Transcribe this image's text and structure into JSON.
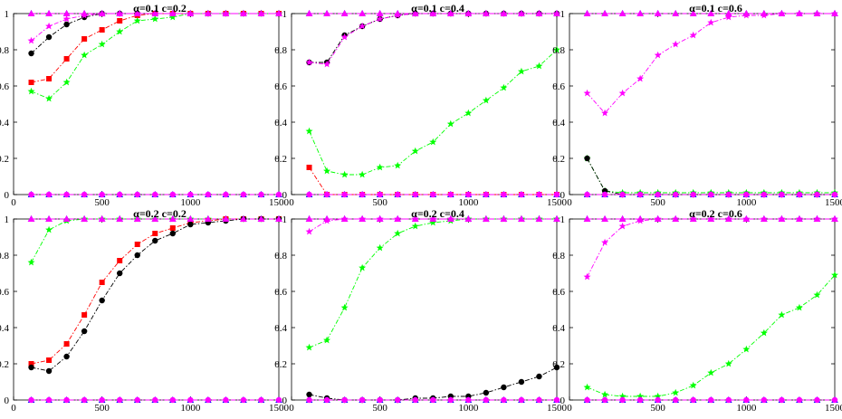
{
  "chart_data": {
    "type": "line",
    "colors": {
      "black": "#000000",
      "red": "#ff0000",
      "green": "#00ff00",
      "blue": "#0000ff",
      "magenta": "#ff00ff"
    },
    "xticks": [
      "0",
      "500",
      "1000",
      "1500"
    ],
    "yticks": [
      "0",
      "0.2",
      "0.4",
      "0.6",
      "0.8",
      "1"
    ],
    "xlim": [
      0,
      1500
    ],
    "ylim": [
      0,
      1
    ],
    "grid": false,
    "x": [
      100,
      200,
      300,
      400,
      500,
      600,
      700,
      800,
      900,
      1000,
      1100,
      1200,
      1300,
      1400,
      1500
    ],
    "panels": [
      {
        "title": "α=0.1 c=0.2",
        "series": [
          {
            "color": "black",
            "marker": "circle",
            "values": [
              0.78,
              0.87,
              0.94,
              0.98,
              1.0,
              1.0,
              1.0,
              1.0,
              1.0,
              1.0,
              1.0,
              1.0,
              1.0,
              1.0,
              1.0
            ]
          },
          {
            "color": "red",
            "marker": "square",
            "values": [
              0.62,
              0.64,
              0.75,
              0.86,
              0.91,
              0.96,
              0.99,
              1.0,
              1.0,
              1.0,
              1.0,
              1.0,
              1.0,
              1.0,
              1.0
            ]
          },
          {
            "color": "green",
            "marker": "star",
            "values": [
              0.57,
              0.53,
              0.62,
              0.77,
              0.83,
              0.9,
              0.96,
              0.97,
              0.98,
              1.0,
              1.0,
              1.0,
              1.0,
              1.0,
              1.0
            ]
          },
          {
            "color": "magenta",
            "marker": "star",
            "values": [
              0.85,
              0.93,
              0.97,
              0.99,
              1.0,
              1.0,
              1.0,
              1.0,
              1.0,
              1.0,
              1.0,
              1.0,
              1.0,
              1.0,
              1.0
            ]
          },
          {
            "color": "blue",
            "marker": "triangle",
            "values": [
              1,
              1,
              1,
              1,
              1,
              1,
              1,
              1,
              1,
              1,
              1,
              1,
              1,
              1,
              1
            ]
          },
          {
            "color": "magenta",
            "marker": "triangle",
            "values": [
              1,
              1,
              1,
              1,
              1,
              1,
              1,
              1,
              1,
              1,
              1,
              1,
              1,
              1,
              1
            ]
          },
          {
            "color": "blue",
            "marker": "triangle",
            "values": [
              0,
              0,
              0,
              0,
              0,
              0,
              0,
              0,
              0,
              0,
              0,
              0,
              0,
              0,
              0
            ]
          },
          {
            "color": "magenta",
            "marker": "circle",
            "values": [
              0,
              0,
              0,
              0,
              0,
              0,
              0,
              0,
              0,
              0,
              0,
              0,
              0,
              0,
              0
            ]
          }
        ]
      },
      {
        "title": "α=0.1 c=0.4",
        "series": [
          {
            "color": "black",
            "marker": "circle",
            "values": [
              0.73,
              0.73,
              0.88,
              0.93,
              0.97,
              0.99,
              1.0,
              1.0,
              1.0,
              1.0,
              1.0,
              1.0,
              1.0,
              1.0,
              1.0
            ]
          },
          {
            "color": "magenta",
            "marker": "star",
            "values": [
              0.73,
              0.72,
              0.87,
              0.93,
              0.97,
              0.99,
              1.0,
              1.0,
              1.0,
              1.0,
              1.0,
              1.0,
              1.0,
              1.0,
              1.0
            ]
          },
          {
            "color": "green",
            "marker": "star",
            "values": [
              0.35,
              0.13,
              0.11,
              0.11,
              0.15,
              0.16,
              0.24,
              0.29,
              0.39,
              0.45,
              0.52,
              0.59,
              0.68,
              0.71,
              0.8
            ]
          },
          {
            "color": "red",
            "marker": "square",
            "values": [
              0.15,
              0.0,
              0.0,
              0.0,
              0.0,
              0.0,
              0.0,
              0.0,
              0.0,
              0.0,
              0.0,
              0.0,
              0.0,
              0.0,
              0.0
            ]
          },
          {
            "color": "blue",
            "marker": "triangle",
            "values": [
              1,
              1,
              1,
              1,
              1,
              1,
              1,
              1,
              1,
              1,
              1,
              1,
              1,
              1,
              1
            ]
          },
          {
            "color": "magenta",
            "marker": "triangle",
            "values": [
              1,
              1,
              1,
              1,
              1,
              1,
              1,
              1,
              1,
              1,
              1,
              1,
              1,
              1,
              1
            ]
          },
          {
            "color": "blue",
            "marker": "triangle",
            "values": [
              0,
              0,
              0,
              0,
              0,
              0,
              0,
              0,
              0,
              0,
              0,
              0,
              0,
              0,
              0
            ]
          },
          {
            "color": "magenta",
            "marker": "circle",
            "values": [
              0,
              0,
              0,
              0,
              0,
              0,
              0,
              0,
              0,
              0,
              0,
              0,
              0,
              0,
              0
            ]
          }
        ]
      },
      {
        "title": "α=0.1 c=0.6",
        "series": [
          {
            "color": "magenta",
            "marker": "star",
            "values": [
              0.56,
              0.45,
              0.56,
              0.64,
              0.77,
              0.83,
              0.88,
              0.95,
              0.98,
              0.99,
              0.99,
              1.0,
              1.0,
              1.0,
              1.0
            ]
          },
          {
            "color": "green",
            "marker": "star",
            "values": [
              0.2,
              0.02,
              0.01,
              0.01,
              0.01,
              0.01,
              0.01,
              0.01,
              0.01,
              0.01,
              0.01,
              0.01,
              0.01,
              0.01,
              0.01
            ]
          },
          {
            "color": "black",
            "marker": "circle",
            "values": [
              0.2,
              0.02,
              0.0,
              0.0,
              0.0,
              0.0,
              0.0,
              0.0,
              0.0,
              0.0,
              0.0,
              0.0,
              0.0,
              0.0,
              0.0
            ]
          },
          {
            "color": "blue",
            "marker": "triangle",
            "values": [
              1,
              1,
              1,
              1,
              1,
              1,
              1,
              1,
              1,
              1,
              1,
              1,
              1,
              1,
              1
            ]
          },
          {
            "color": "magenta",
            "marker": "triangle",
            "values": [
              1,
              1,
              1,
              1,
              1,
              1,
              1,
              1,
              1,
              1,
              1,
              1,
              1,
              1,
              1
            ]
          },
          {
            "color": "blue",
            "marker": "triangle",
            "values": [
              0,
              0,
              0,
              0,
              0,
              0,
              0,
              0,
              0,
              0,
              0,
              0,
              0,
              0,
              0
            ]
          },
          {
            "color": "magenta",
            "marker": "circle",
            "values": [
              0,
              0,
              0,
              0,
              0,
              0,
              0,
              0,
              0,
              0,
              0,
              0,
              0,
              0,
              0
            ]
          }
        ]
      },
      {
        "title": "α=0.2 c=0.2",
        "series": [
          {
            "color": "green",
            "marker": "star",
            "values": [
              0.76,
              0.94,
              0.99,
              1.0,
              1.0,
              1.0,
              1.0,
              1.0,
              1.0,
              1.0,
              1.0,
              1.0,
              1.0,
              1.0,
              1.0
            ]
          },
          {
            "color": "red",
            "marker": "square",
            "values": [
              0.2,
              0.22,
              0.31,
              0.47,
              0.65,
              0.77,
              0.86,
              0.92,
              0.95,
              0.98,
              0.99,
              1.0,
              1.0,
              1.0,
              1.0
            ]
          },
          {
            "color": "black",
            "marker": "circle",
            "values": [
              0.18,
              0.16,
              0.24,
              0.38,
              0.55,
              0.7,
              0.8,
              0.88,
              0.92,
              0.97,
              0.98,
              0.99,
              1.0,
              1.0,
              1.0
            ]
          },
          {
            "color": "blue",
            "marker": "triangle",
            "values": [
              1,
              1,
              1,
              1,
              1,
              1,
              1,
              1,
              1,
              1,
              1,
              1,
              1,
              1,
              1
            ]
          },
          {
            "color": "magenta",
            "marker": "triangle",
            "values": [
              1,
              1,
              1,
              1,
              1,
              1,
              1,
              1,
              1,
              1,
              1,
              1,
              1,
              1,
              1
            ]
          },
          {
            "color": "blue",
            "marker": "triangle",
            "values": [
              0,
              0,
              0,
              0,
              0,
              0,
              0,
              0,
              0,
              0,
              0,
              0,
              0,
              0,
              0
            ]
          },
          {
            "color": "magenta",
            "marker": "circle",
            "values": [
              0,
              0,
              0,
              0,
              0,
              0,
              0,
              0,
              0,
              0,
              0,
              0,
              0,
              0,
              0
            ]
          }
        ]
      },
      {
        "title": "α=0.2 c=0.4",
        "series": [
          {
            "color": "magenta",
            "marker": "star",
            "values": [
              0.93,
              0.99,
              1.0,
              1.0,
              1.0,
              1.0,
              1.0,
              1.0,
              1.0,
              1.0,
              1.0,
              1.0,
              1.0,
              1.0,
              1.0
            ]
          },
          {
            "color": "green",
            "marker": "star",
            "values": [
              0.29,
              0.33,
              0.51,
              0.73,
              0.84,
              0.92,
              0.96,
              0.98,
              0.99,
              1.0,
              1.0,
              1.0,
              1.0,
              1.0,
              1.0
            ]
          },
          {
            "color": "black",
            "marker": "circle",
            "values": [
              0.03,
              0.01,
              0.0,
              0.0,
              0.0,
              0.0,
              0.01,
              0.01,
              0.02,
              0.02,
              0.04,
              0.07,
              0.1,
              0.13,
              0.18
            ]
          },
          {
            "color": "blue",
            "marker": "triangle",
            "values": [
              1,
              1,
              1,
              1,
              1,
              1,
              1,
              1,
              1,
              1,
              1,
              1,
              1,
              1,
              1
            ]
          },
          {
            "color": "magenta",
            "marker": "triangle",
            "values": [
              1,
              1,
              1,
              1,
              1,
              1,
              1,
              1,
              1,
              1,
              1,
              1,
              1,
              1,
              1
            ]
          },
          {
            "color": "blue",
            "marker": "triangle",
            "values": [
              0,
              0,
              0,
              0,
              0,
              0,
              0,
              0,
              0,
              0,
              0,
              0,
              0,
              0,
              0
            ]
          },
          {
            "color": "magenta",
            "marker": "circle",
            "values": [
              0,
              0,
              0,
              0,
              0,
              0,
              0,
              0,
              0,
              0,
              0,
              0,
              0,
              0,
              0
            ]
          }
        ]
      },
      {
        "title": "α=0.2 c=0.6",
        "series": [
          {
            "color": "magenta",
            "marker": "star",
            "values": [
              0.68,
              0.87,
              0.96,
              0.99,
              1.0,
              1.0,
              1.0,
              1.0,
              1.0,
              1.0,
              1.0,
              1.0,
              1.0,
              1.0,
              1.0
            ]
          },
          {
            "color": "green",
            "marker": "star",
            "values": [
              0.07,
              0.03,
              0.02,
              0.02,
              0.02,
              0.04,
              0.08,
              0.15,
              0.2,
              0.28,
              0.37,
              0.47,
              0.51,
              0.58,
              0.69
            ]
          },
          {
            "color": "blue",
            "marker": "triangle",
            "values": [
              1,
              1,
              1,
              1,
              1,
              1,
              1,
              1,
              1,
              1,
              1,
              1,
              1,
              1,
              1
            ]
          },
          {
            "color": "magenta",
            "marker": "triangle",
            "values": [
              1,
              1,
              1,
              1,
              1,
              1,
              1,
              1,
              1,
              1,
              1,
              1,
              1,
              1,
              1
            ]
          },
          {
            "color": "blue",
            "marker": "triangle",
            "values": [
              0,
              0,
              0,
              0,
              0,
              0,
              0,
              0,
              0,
              0,
              0,
              0,
              0,
              0,
              0
            ]
          },
          {
            "color": "magenta",
            "marker": "circle",
            "values": [
              0,
              0,
              0,
              0,
              0,
              0,
              0,
              0,
              0,
              0,
              0,
              0,
              0,
              0,
              0
            ]
          }
        ]
      }
    ]
  }
}
